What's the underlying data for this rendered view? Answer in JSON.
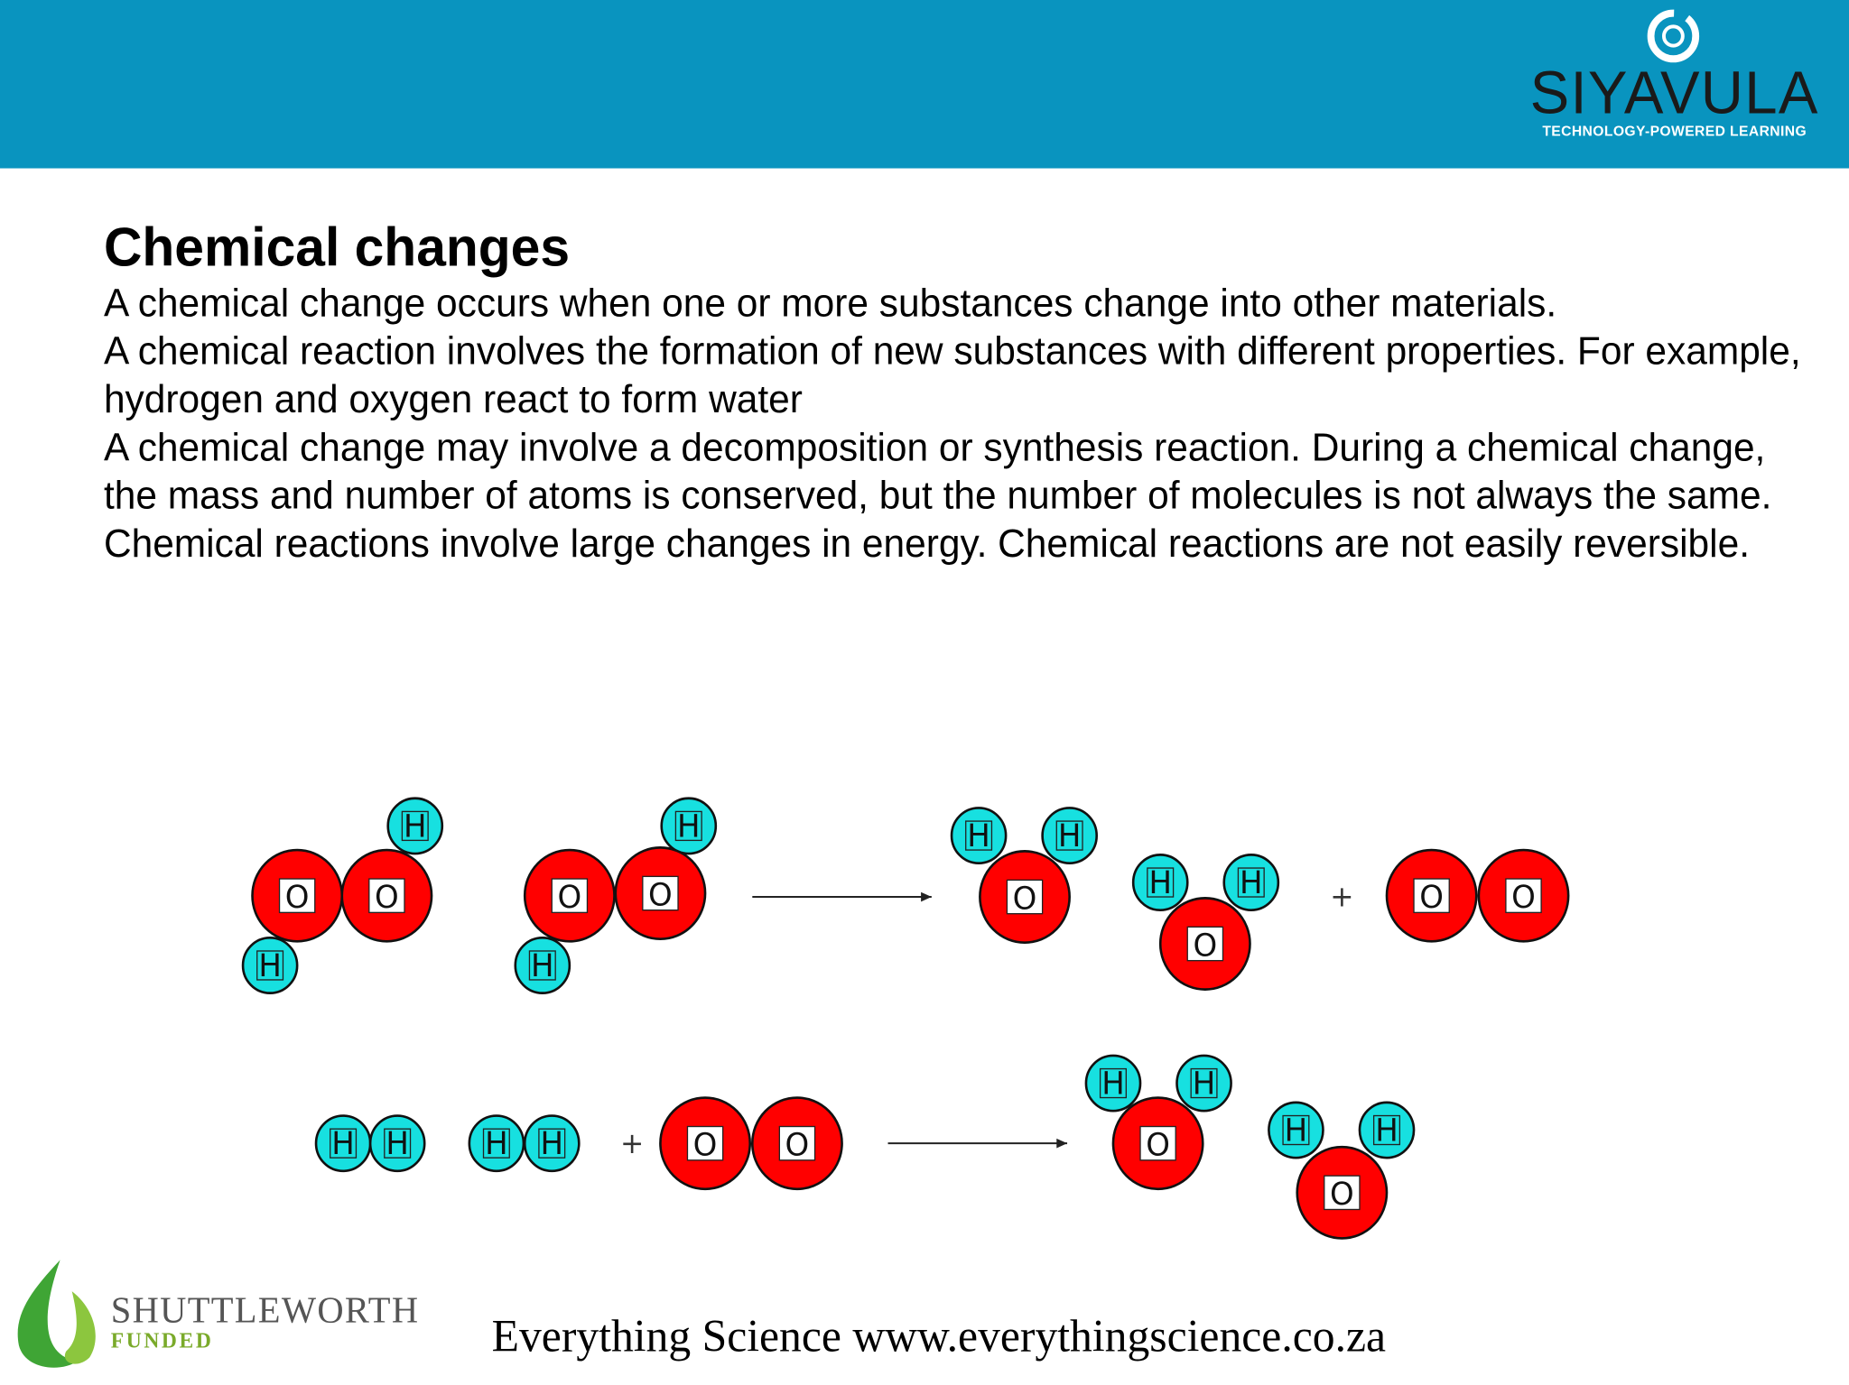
{
  "header": {
    "brand": "SIYAVULA",
    "tagline": "TECHNOLOGY-POWERED LEARNING"
  },
  "title": "Chemical changes",
  "paragraphs": [
    "A chemical change occurs when one or more substances change into other materials.",
    "A chemical reaction involves the formation of new substances with different properties. For example, hydrogen and oxygen react to form water",
    "A chemical change may involve a decomposition or synthesis reaction. During a chemical change, the mass and number of atoms is conserved, but the number of molecules is not always the same.",
    "Chemical reactions involve large changes in energy. Chemical reactions are not easily reversible."
  ],
  "diagram": {
    "hydrogen": "H",
    "oxygen": "O",
    "plus": "+"
  },
  "footer": {
    "funder": "SHUTTLEWORTH",
    "funder_tag": "FUNDED",
    "text": "Everything Science www.everythingscience.co.za"
  }
}
